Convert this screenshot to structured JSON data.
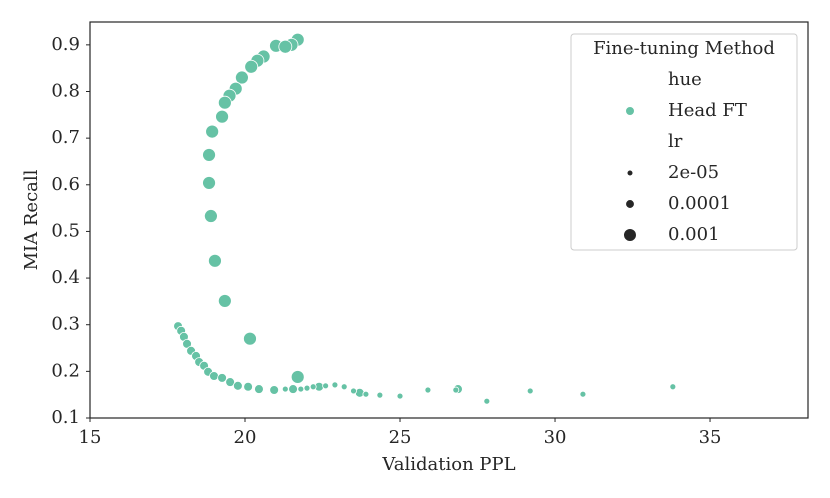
{
  "chart_data": {
    "type": "scatter",
    "x_label": "Validation PPL",
    "y_label": "MIA Recall",
    "xlim": [
      15,
      38.16
    ],
    "ylim": [
      0.1,
      0.949
    ],
    "xticks": [
      15,
      20,
      25,
      30,
      35
    ],
    "yticks": [
      0.1,
      0.2,
      0.3,
      0.4,
      0.5,
      0.6,
      0.7,
      0.8,
      0.9
    ],
    "grid": false,
    "legend": {
      "title": "Fine-tuning Method",
      "hue_title": "hue",
      "position": "upper right",
      "size_title": "lr",
      "sizes": [
        {
          "value": 2e-05,
          "label": "2e-05"
        },
        0.0001,
        0.001
      ]
    },
    "series": [
      {
        "name": "Head FT",
        "color": "#66c2a5",
        "x": [
          21.0,
          21.7,
          21.5,
          21.3,
          20.6,
          20.4,
          20.2,
          19.9,
          19.7,
          19.5,
          19.35,
          19.26,
          18.94,
          18.84,
          18.84,
          18.9,
          19.03,
          19.35,
          20.16,
          21.7,
          17.84,
          17.94,
          18.03,
          18.13,
          18.26,
          18.42,
          18.52,
          18.68,
          18.81,
          19.0,
          19.26,
          19.52,
          19.77,
          20.1,
          20.45,
          20.94,
          21.55,
          22.39,
          23.7,
          26.87,
          21.3,
          21.8,
          22.0,
          22.2,
          22.6,
          22.9,
          23.2,
          23.5,
          23.9,
          24.35,
          25.0,
          25.9,
          26.8,
          27.8,
          29.2,
          30.9,
          33.8
        ],
        "values": [
          0.898,
          0.911,
          0.9,
          0.896,
          0.875,
          0.866,
          0.853,
          0.83,
          0.806,
          0.791,
          0.776,
          0.746,
          0.714,
          0.664,
          0.604,
          0.533,
          0.437,
          0.351,
          0.27,
          0.188,
          0.297,
          0.287,
          0.274,
          0.259,
          0.244,
          0.233,
          0.22,
          0.212,
          0.199,
          0.19,
          0.186,
          0.177,
          0.169,
          0.167,
          0.162,
          0.16,
          0.162,
          0.167,
          0.154,
          0.162,
          0.162,
          0.162,
          0.164,
          0.167,
          0.169,
          0.171,
          0.167,
          0.158,
          0.151,
          0.149,
          0.147,
          0.16,
          0.16,
          0.136,
          0.158,
          0.151,
          0.167
        ],
        "sizes": [
          0.001,
          0.001,
          0.001,
          0.001,
          0.001,
          0.001,
          0.001,
          0.001,
          0.001,
          0.001,
          0.001,
          0.001,
          0.001,
          0.001,
          0.001,
          0.001,
          0.001,
          0.001,
          0.001,
          0.001,
          0.0001,
          0.0001,
          0.0001,
          0.0001,
          0.0001,
          0.0001,
          0.0001,
          0.0001,
          0.0001,
          0.0001,
          0.0001,
          0.0001,
          0.0001,
          0.0001,
          0.0001,
          0.0001,
          0.0001,
          0.0001,
          0.0001,
          0.0001,
          2e-05,
          2e-05,
          2e-05,
          2e-05,
          2e-05,
          2e-05,
          2e-05,
          2e-05,
          2e-05,
          2e-05,
          2e-05,
          2e-05,
          2e-05,
          2e-05,
          2e-05,
          2e-05,
          2e-05
        ]
      }
    ]
  }
}
